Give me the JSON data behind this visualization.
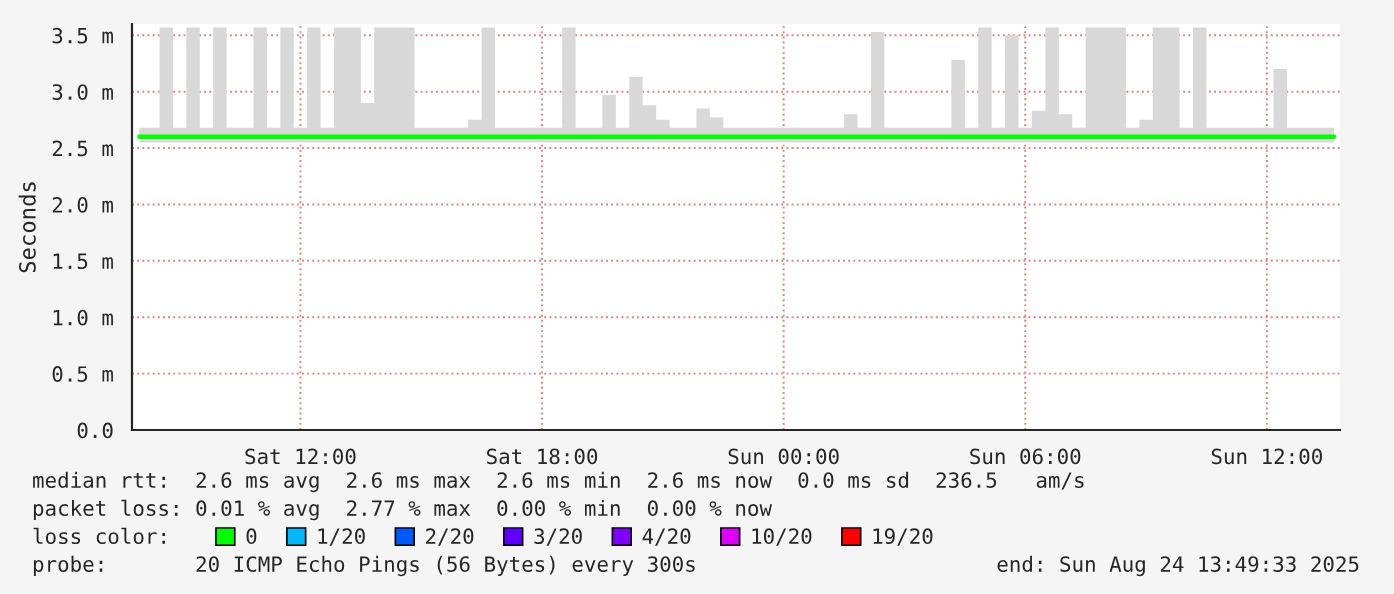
{
  "chart_data": {
    "type": "line",
    "ylabel": "Seconds",
    "legend_title": "loss color:",
    "legend": "bottom",
    "grid": true,
    "marker": "none",
    "line_style": "solid",
    "x": [
      "2025-08-23T08:00",
      "2025-08-23T08:20",
      "2025-08-23T08:40",
      "2025-08-23T09:00",
      "2025-08-23T09:20",
      "2025-08-23T09:40",
      "2025-08-23T10:00",
      "2025-08-23T10:20",
      "2025-08-23T10:40",
      "2025-08-23T11:00",
      "2025-08-23T11:20",
      "2025-08-23T11:40",
      "2025-08-23T12:00",
      "2025-08-23T12:20",
      "2025-08-23T12:40",
      "2025-08-23T13:00",
      "2025-08-23T13:20",
      "2025-08-23T13:40",
      "2025-08-23T14:00",
      "2025-08-23T14:20",
      "2025-08-23T14:40",
      "2025-08-23T15:00",
      "2025-08-23T15:20",
      "2025-08-23T15:40",
      "2025-08-23T16:00",
      "2025-08-23T16:20",
      "2025-08-23T16:40",
      "2025-08-23T17:00",
      "2025-08-23T17:20",
      "2025-08-23T17:40",
      "2025-08-23T18:00",
      "2025-08-23T18:20",
      "2025-08-23T18:40",
      "2025-08-23T19:00",
      "2025-08-23T19:20",
      "2025-08-23T19:40",
      "2025-08-23T20:00",
      "2025-08-23T20:20",
      "2025-08-23T20:40",
      "2025-08-23T21:00",
      "2025-08-23T21:20",
      "2025-08-23T21:40",
      "2025-08-23T22:00",
      "2025-08-23T22:20",
      "2025-08-23T22:40",
      "2025-08-23T23:00",
      "2025-08-23T23:20",
      "2025-08-23T23:40",
      "2025-08-24T00:00",
      "2025-08-24T00:20",
      "2025-08-24T00:40",
      "2025-08-24T01:00",
      "2025-08-24T01:20",
      "2025-08-24T01:40",
      "2025-08-24T02:00",
      "2025-08-24T02:20",
      "2025-08-24T02:40",
      "2025-08-24T03:00",
      "2025-08-24T03:20",
      "2025-08-24T03:40",
      "2025-08-24T04:00",
      "2025-08-24T04:20",
      "2025-08-24T04:40",
      "2025-08-24T05:00",
      "2025-08-24T05:20",
      "2025-08-24T05:40",
      "2025-08-24T06:00",
      "2025-08-24T06:20",
      "2025-08-24T06:40",
      "2025-08-24T07:00",
      "2025-08-24T07:20",
      "2025-08-24T07:40",
      "2025-08-24T08:00",
      "2025-08-24T08:20",
      "2025-08-24T08:40",
      "2025-08-24T09:00",
      "2025-08-24T09:20",
      "2025-08-24T09:40",
      "2025-08-24T10:00",
      "2025-08-24T10:20",
      "2025-08-24T10:40",
      "2025-08-24T11:00",
      "2025-08-24T11:20",
      "2025-08-24T11:40",
      "2025-08-24T12:00",
      "2025-08-24T12:20",
      "2025-08-24T12:40",
      "2025-08-24T13:00",
      "2025-08-24T13:20",
      "2025-08-24T13:40"
    ],
    "series": [
      {
        "name": "0",
        "color": "#00ff00",
        "values": [
          2.6,
          2.6,
          2.6,
          2.6,
          2.6,
          2.6,
          2.6,
          2.6,
          2.6,
          2.6,
          2.6,
          2.6,
          2.6,
          2.6,
          2.6,
          2.6,
          2.6,
          2.6,
          2.6,
          2.6,
          2.6,
          2.6,
          2.6,
          2.6,
          2.6,
          2.6,
          2.6,
          2.6,
          2.6,
          2.6,
          2.6,
          2.6,
          2.6,
          2.6,
          2.6,
          2.6,
          2.6,
          2.6,
          2.6,
          2.6,
          2.6,
          2.6,
          2.6,
          2.6,
          2.6,
          2.6,
          2.6,
          2.6,
          2.6,
          2.6,
          2.6,
          2.6,
          2.6,
          2.6,
          2.6,
          2.6,
          2.6,
          2.6,
          2.6,
          2.6,
          2.6,
          2.6,
          2.6,
          2.6,
          2.6,
          2.6,
          2.6,
          2.6,
          2.6,
          2.6,
          2.6,
          2.6,
          2.6,
          2.6,
          2.6,
          2.6,
          2.6,
          2.6,
          2.6,
          2.6,
          2.6,
          2.6,
          2.6,
          2.6,
          2.6,
          2.6,
          2.6,
          2.6,
          2.6,
          2.6
        ],
        "lower": [
          2.55,
          2.55,
          2.55,
          2.55,
          2.55,
          2.55,
          2.55,
          2.55,
          2.55,
          2.55,
          2.55,
          2.55,
          2.55,
          2.55,
          2.55,
          2.55,
          2.55,
          2.55,
          2.55,
          2.55,
          2.55,
          2.55,
          2.55,
          2.55,
          2.55,
          2.55,
          2.55,
          2.55,
          2.55,
          2.55,
          2.55,
          2.55,
          2.55,
          2.55,
          2.55,
          2.55,
          2.55,
          2.55,
          2.55,
          2.55,
          2.55,
          2.55,
          2.55,
          2.55,
          2.55,
          2.55,
          2.55,
          2.55,
          2.55,
          2.55,
          2.55,
          2.55,
          2.55,
          2.55,
          2.55,
          2.55,
          2.55,
          2.55,
          2.55,
          2.55,
          2.55,
          2.55,
          2.55,
          2.55,
          2.55,
          2.55,
          2.55,
          2.55,
          2.55,
          2.55,
          2.55,
          2.55,
          2.55,
          2.55,
          2.55,
          2.55,
          2.55,
          2.55,
          2.55,
          2.55,
          2.55,
          2.55,
          2.55,
          2.55,
          2.55,
          2.55,
          2.55,
          2.55,
          2.55,
          2.55
        ],
        "upper": [
          2.68,
          2.68,
          3.57,
          2.68,
          3.57,
          2.68,
          3.57,
          2.68,
          2.68,
          3.57,
          2.68,
          3.57,
          2.68,
          3.57,
          2.68,
          3.57,
          3.57,
          2.9,
          3.57,
          3.57,
          3.57,
          2.68,
          2.68,
          2.68,
          2.68,
          2.75,
          3.57,
          2.68,
          2.68,
          2.68,
          2.68,
          2.68,
          3.57,
          2.68,
          2.68,
          2.97,
          2.68,
          3.13,
          2.88,
          2.75,
          2.68,
          2.68,
          2.85,
          2.77,
          2.68,
          2.68,
          2.68,
          2.68,
          2.68,
          2.68,
          2.68,
          2.68,
          2.68,
          2.8,
          2.68,
          3.53,
          2.68,
          2.68,
          2.68,
          2.68,
          2.68,
          3.28,
          2.68,
          3.57,
          2.68,
          3.5,
          2.68,
          2.83,
          3.57,
          2.8,
          2.68,
          3.57,
          3.57,
          3.57,
          2.68,
          2.75,
          3.57,
          3.57,
          2.68,
          3.57,
          2.68,
          2.68,
          2.68,
          2.68,
          2.68,
          3.2,
          2.68,
          2.68,
          2.68,
          2.68
        ]
      },
      {
        "name": "1/20",
        "color": "#00b8ff",
        "values": [
          null,
          null,
          null,
          null,
          null,
          null,
          null,
          null,
          null,
          null,
          null,
          null,
          null,
          null,
          null,
          null,
          null,
          null,
          null,
          null,
          null,
          null,
          null,
          null,
          null,
          null,
          null,
          null,
          null,
          null,
          null,
          null,
          null,
          null,
          null,
          null,
          null,
          null,
          null,
          null,
          null,
          null,
          null,
          null,
          null,
          null,
          null,
          null,
          null,
          null,
          null,
          null,
          null,
          null,
          null,
          null,
          null,
          null,
          null,
          null,
          null,
          null,
          null,
          null,
          null,
          null,
          null,
          null,
          null,
          null,
          null,
          null,
          null,
          null,
          null,
          null,
          null,
          null,
          null,
          null,
          null,
          null,
          null,
          null,
          null,
          null,
          null,
          null,
          null,
          null
        ]
      },
      {
        "name": "2/20",
        "color": "#0059ff",
        "values": [
          null,
          null,
          null,
          null,
          null,
          null,
          null,
          null,
          null,
          null,
          null,
          null,
          null,
          null,
          null,
          null,
          null,
          null,
          null,
          null,
          null,
          null,
          null,
          null,
          null,
          null,
          null,
          null,
          null,
          null,
          null,
          null,
          null,
          null,
          null,
          null,
          null,
          null,
          null,
          null,
          null,
          null,
          null,
          null,
          null,
          null,
          null,
          null,
          null,
          null,
          null,
          null,
          null,
          null,
          null,
          null,
          null,
          null,
          null,
          null,
          null,
          null,
          null,
          null,
          null,
          null,
          null,
          null,
          null,
          null,
          null,
          null,
          null,
          null,
          null,
          null,
          null,
          null,
          null,
          null,
          null,
          null,
          null,
          null,
          null,
          null,
          null,
          null,
          null,
          null
        ]
      },
      {
        "name": "3/20",
        "color": "#5e00ff",
        "values": [
          null,
          null,
          null,
          null,
          null,
          null,
          null,
          null,
          null,
          null,
          null,
          null,
          null,
          null,
          null,
          null,
          null,
          null,
          null,
          null,
          null,
          null,
          null,
          null,
          null,
          null,
          null,
          null,
          null,
          null,
          null,
          null,
          null,
          null,
          null,
          null,
          null,
          null,
          null,
          null,
          null,
          null,
          null,
          null,
          null,
          null,
          null,
          null,
          null,
          null,
          null,
          null,
          null,
          null,
          null,
          null,
          null,
          null,
          null,
          null,
          null,
          null,
          null,
          null,
          null,
          null,
          null,
          null,
          null,
          null,
          null,
          null,
          null,
          null,
          null,
          null,
          null,
          null,
          null,
          null,
          null,
          null,
          null,
          null,
          null,
          null,
          null,
          null,
          null,
          null
        ]
      },
      {
        "name": "4/20",
        "color": "#7e00ff",
        "values": [
          null,
          null,
          null,
          null,
          null,
          null,
          null,
          null,
          null,
          null,
          null,
          null,
          null,
          null,
          null,
          null,
          null,
          null,
          null,
          null,
          null,
          null,
          null,
          null,
          null,
          null,
          null,
          null,
          null,
          null,
          null,
          null,
          null,
          null,
          null,
          null,
          null,
          null,
          null,
          null,
          null,
          null,
          null,
          null,
          null,
          null,
          null,
          null,
          null,
          null,
          null,
          null,
          null,
          null,
          null,
          null,
          null,
          null,
          null,
          null,
          null,
          null,
          null,
          null,
          null,
          null,
          null,
          null,
          null,
          null,
          null,
          null,
          null,
          null,
          null,
          null,
          null,
          null,
          null,
          null,
          null,
          null,
          null,
          null,
          null,
          null,
          null,
          null,
          null,
          null
        ]
      },
      {
        "name": "10/20",
        "color": "#dd00ff",
        "values": [
          null,
          null,
          null,
          null,
          null,
          null,
          null,
          null,
          null,
          null,
          null,
          null,
          null,
          null,
          null,
          null,
          null,
          null,
          null,
          null,
          null,
          null,
          null,
          null,
          null,
          null,
          null,
          null,
          null,
          null,
          null,
          null,
          null,
          null,
          null,
          null,
          null,
          null,
          null,
          null,
          null,
          null,
          null,
          null,
          null,
          null,
          null,
          null,
          null,
          null,
          null,
          null,
          null,
          null,
          null,
          null,
          null,
          null,
          null,
          null,
          null,
          null,
          null,
          null,
          null,
          null,
          null,
          null,
          null,
          null,
          null,
          null,
          null,
          null,
          null,
          null,
          null,
          null,
          null,
          null,
          null,
          null,
          null,
          null,
          null,
          null,
          null,
          null,
          null,
          null
        ]
      },
      {
        "name": "19/20",
        "color": "#ff0000",
        "values": [
          null,
          null,
          null,
          null,
          null,
          null,
          null,
          null,
          null,
          null,
          null,
          null,
          null,
          null,
          null,
          null,
          null,
          null,
          null,
          null,
          null,
          null,
          null,
          null,
          null,
          null,
          null,
          null,
          null,
          null,
          null,
          null,
          null,
          null,
          null,
          null,
          null,
          null,
          null,
          null,
          null,
          null,
          null,
          null,
          null,
          null,
          null,
          null,
          null,
          null,
          null,
          null,
          null,
          null,
          null,
          null,
          null,
          null,
          null,
          null,
          null,
          null,
          null,
          null,
          null,
          null,
          null,
          null,
          null,
          null,
          null,
          null,
          null,
          null,
          null,
          null,
          null,
          null,
          null,
          null,
          null,
          null,
          null,
          null,
          null,
          null,
          null,
          null,
          null,
          null
        ]
      }
    ],
    "xlim": [
      "2025-08-23T07:49",
      "2025-08-24T13:49"
    ],
    "xticks": [
      {
        "value": "2025-08-23T12:00",
        "label": "Sat 12:00"
      },
      {
        "value": "2025-08-23T18:00",
        "label": "Sat 18:00"
      },
      {
        "value": "2025-08-24T00:00",
        "label": "Sun 00:00"
      },
      {
        "value": "2025-08-24T06:00",
        "label": "Sun 06:00"
      },
      {
        "value": "2025-08-24T12:00",
        "label": "Sun 12:00"
      }
    ],
    "ylim": [
      0,
      3.6
    ],
    "yticks": [
      {
        "value": 0,
        "label": "0.0"
      },
      {
        "value": 0.5,
        "label": "0.5 m"
      },
      {
        "value": 1.0,
        "label": "1.0 m"
      },
      {
        "value": 1.5,
        "label": "1.5 m"
      },
      {
        "value": 2.0,
        "label": "2.0 m"
      },
      {
        "value": 2.5,
        "label": "2.5 m"
      },
      {
        "value": 3.0,
        "label": "3.0 m"
      },
      {
        "value": 3.5,
        "label": "3.5 m"
      }
    ],
    "annotations": [
      "median rtt:  2.6 ms avg  2.6 ms max  2.6 ms min  2.6 ms now  0.0 ms sd  236.5   am/s",
      "packet loss: 0.01 % avg  2.77 % max  0.00 % min  0.00 % now",
      "probe:       20 ICMP Echo Pings (56 Bytes) every 300s",
      "end: Sun Aug 24 13:49:33 2025"
    ]
  }
}
